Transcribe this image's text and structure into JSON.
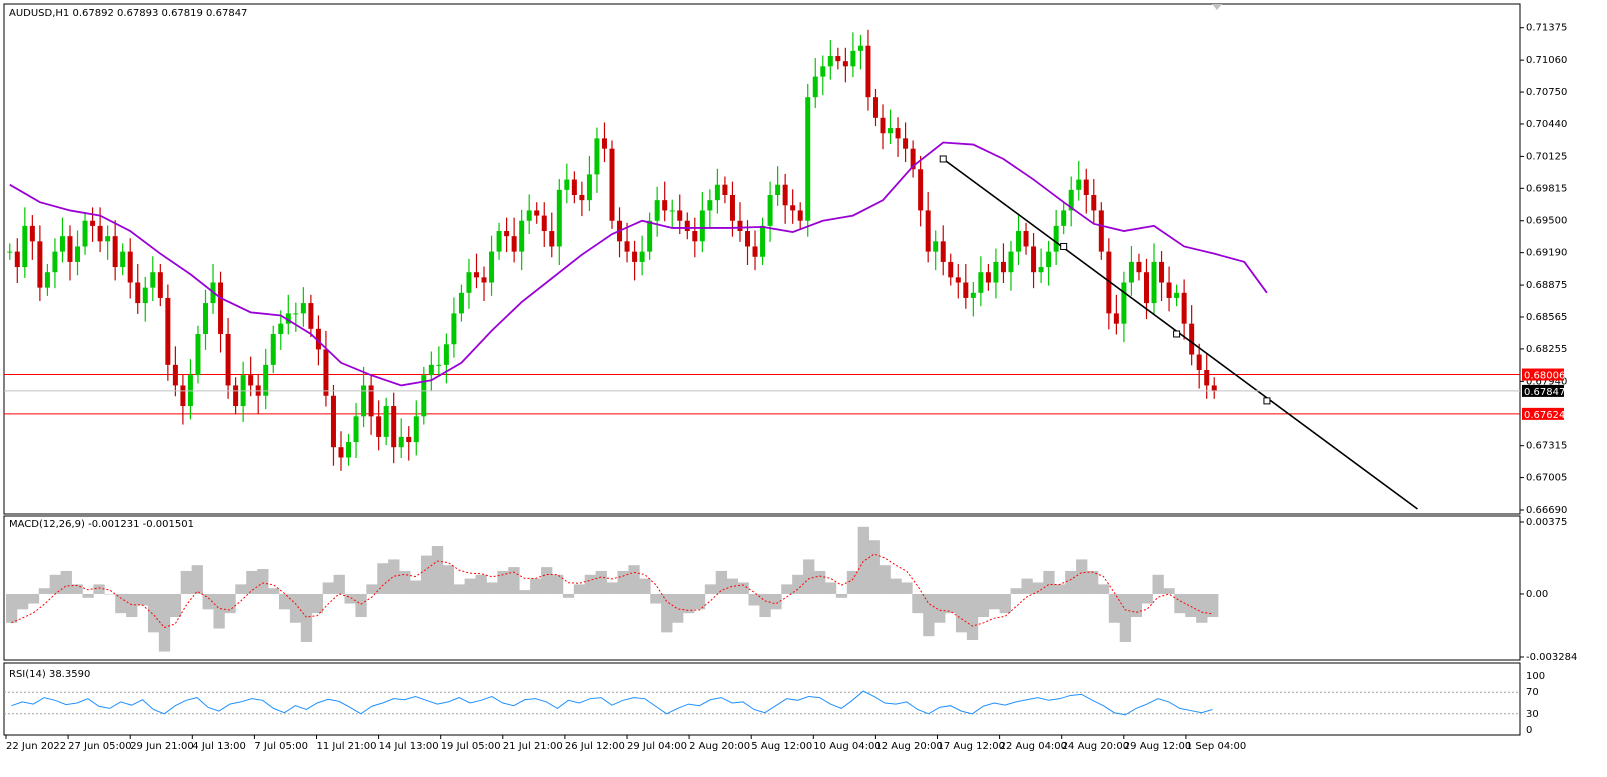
{
  "chart_data": [
    {
      "type": "candlestick",
      "title": "AUDUSD,H1  0.67892 0.67893 0.67819 0.67847",
      "ylim": [
        0.6669,
        0.7145
      ],
      "price_labels": [
        "0.71375",
        "0.71060",
        "0.70750",
        "0.70440",
        "0.70125",
        "0.69815",
        "0.69500",
        "0.69190",
        "0.68875",
        "0.68565",
        "0.68255",
        "0.67940",
        "0.67315",
        "0.67005",
        "0.66690"
      ],
      "current_price": "0.67847",
      "horizontal_levels": [
        {
          "label": "0.68006",
          "value": 0.68006,
          "color": "#ff0000"
        },
        {
          "label": "0.67624",
          "value": 0.67624,
          "color": "#ff0000"
        }
      ],
      "series": [
        {
          "name": "",
          "role": "moving-average",
          "color": "#9a00d6",
          "points": [
            [
              0,
              0.6985
            ],
            [
              4,
              0.6968
            ],
            [
              8,
              0.696
            ],
            [
              12,
              0.6955
            ],
            [
              16,
              0.694
            ],
            [
              20,
              0.6918
            ],
            [
              24,
              0.6898
            ],
            [
              28,
              0.6875
            ],
            [
              32,
              0.6861
            ],
            [
              36,
              0.6858
            ],
            [
              40,
              0.684
            ],
            [
              44,
              0.6812
            ],
            [
              48,
              0.68
            ],
            [
              52,
              0.679
            ],
            [
              56,
              0.6795
            ],
            [
              60,
              0.6812
            ],
            [
              64,
              0.6843
            ],
            [
              68,
              0.6871
            ],
            [
              72,
              0.6894
            ],
            [
              76,
              0.6917
            ],
            [
              80,
              0.6937
            ],
            [
              84,
              0.695
            ],
            [
              88,
              0.6943
            ],
            [
              92,
              0.6943
            ],
            [
              96,
              0.6943
            ],
            [
              100,
              0.6944
            ],
            [
              104,
              0.6939
            ],
            [
              108,
              0.695
            ],
            [
              112,
              0.6955
            ],
            [
              116,
              0.697
            ],
            [
              120,
              0.7003
            ],
            [
              124,
              0.7026
            ],
            [
              128,
              0.7024
            ],
            [
              132,
              0.701
            ],
            [
              136,
              0.699
            ],
            [
              140,
              0.6968
            ],
            [
              144,
              0.6947
            ],
            [
              148,
              0.694
            ],
            [
              152,
              0.6945
            ],
            [
              156,
              0.6925
            ],
            [
              160,
              0.6918
            ],
            [
              164,
              0.691
            ],
            [
              167,
              0.688
            ]
          ]
        },
        {
          "name": "",
          "role": "trendline",
          "color": "#000000",
          "points": [
            [
              124,
              0.701
            ],
            [
              187,
              0.667
            ]
          ]
        }
      ],
      "anchors": [
        [
          124,
          0.701
        ],
        [
          140,
          0.6925
        ],
        [
          155,
          0.684
        ],
        [
          167,
          0.6775
        ]
      ],
      "closes": [
        0.692,
        0.6905,
        0.6945,
        0.693,
        0.6885,
        0.69,
        0.692,
        0.6935,
        0.691,
        0.6925,
        0.695,
        0.6945,
        0.693,
        0.6935,
        0.6905,
        0.692,
        0.689,
        0.687,
        0.6885,
        0.69,
        0.6875,
        0.681,
        0.679,
        0.677,
        0.68,
        0.684,
        0.687,
        0.689,
        0.684,
        0.679,
        0.677,
        0.68,
        0.679,
        0.678,
        0.681,
        0.684,
        0.685,
        0.686,
        0.686,
        0.687,
        0.6845,
        0.6825,
        0.678,
        0.673,
        0.672,
        0.6735,
        0.676,
        0.679,
        0.676,
        0.674,
        0.677,
        0.673,
        0.674,
        0.6735,
        0.676,
        0.68,
        0.681,
        0.681,
        0.683,
        0.686,
        0.688,
        0.69,
        0.6895,
        0.689,
        0.692,
        0.694,
        0.6935,
        0.692,
        0.695,
        0.696,
        0.6955,
        0.694,
        0.6925,
        0.698,
        0.699,
        0.6975,
        0.697,
        0.6995,
        0.703,
        0.702,
        0.695,
        0.693,
        0.692,
        0.691,
        0.692,
        0.695,
        0.697,
        0.696,
        0.696,
        0.695,
        0.694,
        0.693,
        0.696,
        0.697,
        0.6985,
        0.6975,
        0.695,
        0.694,
        0.6925,
        0.6915,
        0.6945,
        0.6975,
        0.6985,
        0.6965,
        0.696,
        0.695,
        0.707,
        0.709,
        0.71,
        0.711,
        0.7105,
        0.71,
        0.7115,
        0.712,
        0.707,
        0.705,
        0.7035,
        0.704,
        0.703,
        0.702,
        0.7,
        0.696,
        0.692,
        0.693,
        0.691,
        0.6895,
        0.689,
        0.6875,
        0.688,
        0.69,
        0.689,
        0.691,
        0.69,
        0.692,
        0.694,
        0.6925,
        0.69,
        0.6905,
        0.692,
        0.6945,
        0.696,
        0.698,
        0.699,
        0.6975,
        0.696,
        0.692,
        0.686,
        0.685,
        0.689,
        0.691,
        0.69,
        0.687,
        0.691,
        0.689,
        0.6875,
        0.688,
        0.685,
        0.682,
        0.6805,
        0.679,
        0.6785
      ],
      "x_labels": [
        "22 Jun 2022",
        "27 Jun 05:00",
        "29 Jun 21:00",
        "4 Jul 13:00",
        "7 Jul 05:00",
        "11 Jul 21:00",
        "14 Jul 13:00",
        "19 Jul 05:00",
        "21 Jul 21:00",
        "26 Jul 12:00",
        "29 Jul 04:00",
        "2 Aug 20:00",
        "5 Aug 12:00",
        "10 Aug 04:00",
        "12 Aug 20:00",
        "17 Aug 12:00",
        "22 Aug 04:00",
        "24 Aug 20:00",
        "29 Aug 12:00",
        "1 Sep 04:00"
      ]
    },
    {
      "type": "bar",
      "title": "MACD(12,26,9) -0.001231 -0.001501",
      "ylim": [
        -0.003284,
        0.00375
      ],
      "y_labels": [
        "0.00375",
        "0.00",
        "-0.003284"
      ],
      "series": [
        {
          "name": "",
          "role": "histogram",
          "color": "#c0c0c0",
          "values": [
            -0.0015,
            -0.0008,
            -0.0005,
            0.0003,
            0.001,
            0.0012,
            0.0005,
            -0.0002,
            0.0005,
            0.0,
            -0.001,
            -0.0012,
            -0.0006,
            -0.002,
            -0.003,
            -0.0012,
            0.0012,
            0.0015,
            -0.0008,
            -0.0018,
            -0.001,
            0.0005,
            0.0012,
            0.0013,
            0.0003,
            -0.0008,
            -0.0015,
            -0.0025,
            -0.001,
            0.0006,
            0.001,
            -0.0005,
            -0.0012,
            0.0005,
            0.0016,
            0.0018,
            0.0012,
            0.0007,
            0.002,
            0.0025,
            0.0015,
            0.0005,
            0.0008,
            0.001,
            0.0006,
            0.0012,
            0.0014,
            0.0002,
            0.0008,
            0.0014,
            0.001,
            -0.0002,
            0.0005,
            0.001,
            0.0012,
            0.0006,
            0.0012,
            0.0015,
            0.0008,
            -0.0005,
            -0.002,
            -0.0015,
            -0.001,
            -0.0008,
            0.0005,
            0.0012,
            0.0008,
            0.0006,
            -0.0006,
            -0.0012,
            -0.0008,
            0.0005,
            0.001,
            0.0018,
            0.0012,
            0.0006,
            -0.0002,
            0.0012,
            0.0035,
            0.0028,
            0.0015,
            0.0008,
            0.0006,
            -0.001,
            -0.0022,
            -0.0015,
            -0.001,
            -0.002,
            -0.0024,
            -0.0012,
            -0.0008,
            -0.001,
            0.0003,
            0.0008,
            0.0006,
            0.0012,
            0.0005,
            0.0012,
            0.0018,
            0.0012,
            0.0005,
            -0.0015,
            -0.0025,
            -0.0012,
            -0.0005,
            0.001,
            0.0003,
            -0.001,
            -0.0012,
            -0.0015,
            -0.0012
          ]
        },
        {
          "name": "",
          "role": "signal",
          "color": "#ff0000",
          "style": "dotted"
        }
      ]
    },
    {
      "type": "line",
      "title": "RSI(14) 38.3590",
      "ylim": [
        0,
        100
      ],
      "y_labels": [
        "100",
        "70",
        "30",
        "0"
      ],
      "levels": [
        70,
        30
      ],
      "series": [
        {
          "name": "",
          "role": "rsi",
          "color": "#1e90ff",
          "values": [
            45,
            52,
            48,
            60,
            55,
            47,
            50,
            58,
            44,
            40,
            52,
            46,
            56,
            38,
            30,
            45,
            55,
            60,
            42,
            35,
            48,
            52,
            58,
            55,
            40,
            32,
            45,
            38,
            50,
            57,
            53,
            42,
            30,
            44,
            50,
            58,
            56,
            62,
            55,
            48,
            52,
            60,
            50,
            55,
            62,
            50,
            45,
            56,
            58,
            52,
            40,
            55,
            50,
            58,
            60,
            46,
            55,
            60,
            58,
            44,
            30,
            40,
            48,
            45,
            56,
            60,
            50,
            52,
            38,
            32,
            45,
            58,
            55,
            62,
            60,
            48,
            40,
            55,
            72,
            62,
            50,
            48,
            52,
            38,
            30,
            42,
            45,
            35,
            30,
            44,
            50,
            46,
            52,
            56,
            60,
            55,
            58,
            64,
            66,
            55,
            45,
            32,
            28,
            40,
            48,
            58,
            52,
            40,
            36,
            32,
            38
          ]
        }
      ]
    }
  ]
}
